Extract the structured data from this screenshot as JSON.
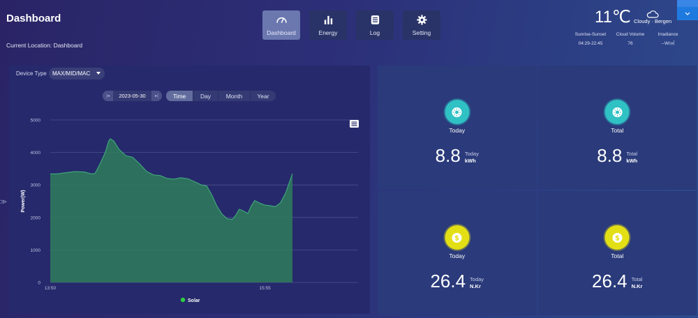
{
  "header": {
    "title": "Dashboard",
    "location": "Current Location: Dashboard"
  },
  "nav": {
    "items": [
      {
        "label": "Dashboard",
        "icon": "gauge-icon",
        "active": true
      },
      {
        "label": "Energy",
        "icon": "bar-chart-icon",
        "active": false
      },
      {
        "label": "Log",
        "icon": "log-icon",
        "active": false
      },
      {
        "label": "Setting",
        "icon": "gear-icon",
        "active": false
      }
    ]
  },
  "weather": {
    "temperature": "11℃",
    "condition": "Cloudy · Bergen",
    "stats": [
      {
        "label": "Sunrise-Sunset",
        "value": "04:29-22:45"
      },
      {
        "label": "Cloud Volume",
        "value": "76"
      },
      {
        "label": "Irradiance",
        "value": "--W/㎡"
      }
    ]
  },
  "controls": {
    "device_label": "Device Type",
    "device_value": "MAX/MID/MAC",
    "date": "2023-05-30",
    "ranges": [
      "Time",
      "Day",
      "Month",
      "Year"
    ],
    "active_range": "Time"
  },
  "chart_data": {
    "type": "area",
    "ylabel": "Power(W)",
    "xlabel": "",
    "ylim": [
      0,
      5000
    ],
    "y_ticks": [
      0,
      1000,
      2000,
      3000,
      4000,
      5000
    ],
    "x_tick_labels": [
      {
        "label": "13:50",
        "t": 0
      },
      {
        "label": "15:55",
        "t": 125
      }
    ],
    "x_domain_minutes": [
      0,
      141
    ],
    "series": [
      {
        "name": "Solar",
        "color": "#2f7d5a",
        "line_color": "#3fa67a",
        "legend_dot": "#2ecc40",
        "points": [
          [
            0,
            3340
          ],
          [
            4,
            3340
          ],
          [
            8,
            3370
          ],
          [
            14,
            3410
          ],
          [
            20,
            3400
          ],
          [
            24,
            3340
          ],
          [
            26,
            3350
          ],
          [
            29,
            3650
          ],
          [
            32,
            4000
          ],
          [
            34,
            4350
          ],
          [
            35,
            4420
          ],
          [
            37,
            4350
          ],
          [
            40,
            4100
          ],
          [
            44,
            3900
          ],
          [
            48,
            3850
          ],
          [
            52,
            3650
          ],
          [
            56,
            3420
          ],
          [
            60,
            3310
          ],
          [
            64,
            3290
          ],
          [
            68,
            3200
          ],
          [
            72,
            3180
          ],
          [
            76,
            3220
          ],
          [
            80,
            3190
          ],
          [
            84,
            3100
          ],
          [
            88,
            3000
          ],
          [
            91,
            2970
          ],
          [
            94,
            2700
          ],
          [
            97,
            2350
          ],
          [
            100,
            2100
          ],
          [
            103,
            1960
          ],
          [
            106,
            1940
          ],
          [
            108,
            2070
          ],
          [
            110,
            2250
          ],
          [
            112,
            2210
          ],
          [
            115,
            2120
          ],
          [
            117,
            2350
          ],
          [
            119,
            2520
          ],
          [
            122,
            2440
          ],
          [
            125,
            2380
          ],
          [
            128,
            2360
          ],
          [
            131,
            2330
          ],
          [
            134,
            2450
          ],
          [
            137,
            2750
          ],
          [
            139,
            3050
          ],
          [
            141,
            3350
          ]
        ]
      }
    ],
    "legend": [
      "Solar"
    ],
    "grid": true
  },
  "cards": [
    {
      "title": "Today",
      "value": "8.8",
      "meta_label": "Today",
      "unit": "kWh",
      "icon": "sun-icon",
      "color": "teal"
    },
    {
      "title": "Total",
      "value": "8.8",
      "meta_label": "Total",
      "unit": "kWh",
      "icon": "sun-icon",
      "color": "teal"
    },
    {
      "title": "Today",
      "value": "26.4",
      "meta_label": "Today",
      "unit": "N.Kr",
      "icon": "dollar-icon",
      "color": "yellow"
    },
    {
      "title": "Total",
      "value": "26.4",
      "meta_label": "Total",
      "unit": "N.Kr",
      "icon": "dollar-icon",
      "color": "yellow"
    }
  ]
}
